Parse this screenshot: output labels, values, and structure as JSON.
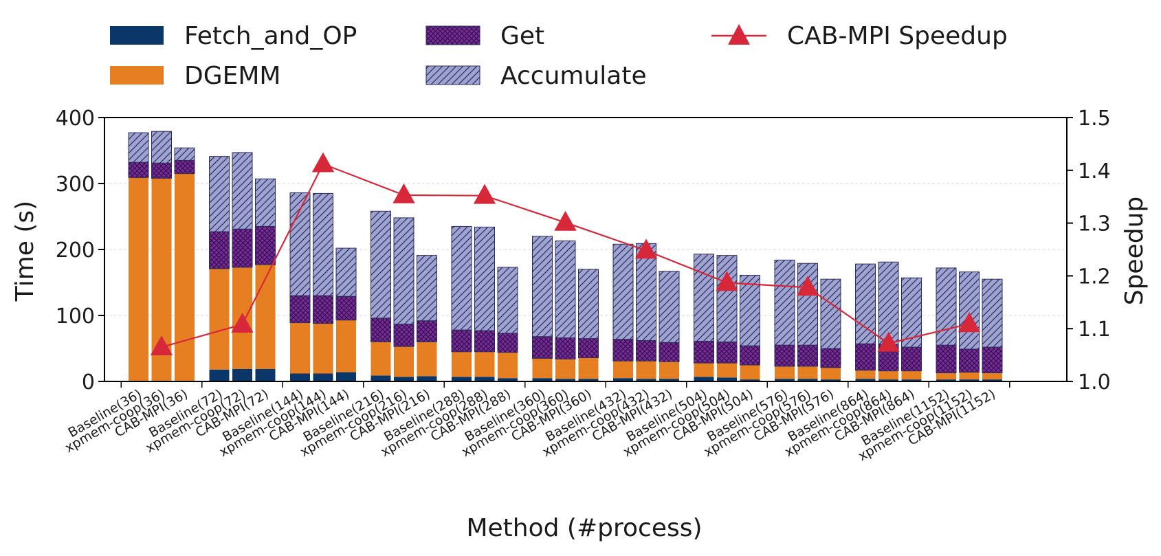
{
  "chart_data": {
    "type": "bar",
    "xlabel": "Method (#process)",
    "ylabel": "Time (s)",
    "y2label": "Speedup",
    "ylim": [
      0,
      400
    ],
    "y2lim": [
      1.0,
      1.5
    ],
    "yticks": [
      "0",
      "100",
      "200",
      "300",
      "400"
    ],
    "y2ticks": [
      "1.0",
      "1.1",
      "1.2",
      "1.3",
      "1.4",
      "1.5"
    ],
    "grid": "horizontal dashed",
    "legend_position": "top",
    "stacked": true,
    "categories": [
      "Baseline(36)",
      "xpmem-coop(36)",
      "CAB-MPI(36)",
      "Baseline(72)",
      "xpmem-coop(72)",
      "CAB-MPI(72)",
      "Baseline(144)",
      "xpmem-coop(144)",
      "CAB-MPI(144)",
      "Baseline(216)",
      "xpmem-coop(216)",
      "CAB-MPI(216)",
      "Baseline(288)",
      "xpmem-coop(288)",
      "CAB-MPI(288)",
      "Baseline(360)",
      "xpmem-coop(360)",
      "CAB-MPI(360)",
      "Baseline(432)",
      "xpmem-coop(432)",
      "CAB-MPI(432)",
      "Baseline(504)",
      "xpmem-coop(504)",
      "CAB-MPI(504)",
      "Baseline(576)",
      "xpmem-coop(576)",
      "CAB-MPI(576)",
      "Baseline(864)",
      "xpmem-coop(864)",
      "CAB-MPI(864)",
      "Baseline(1152)",
      "xpmem-coop(1152)",
      "CAB-MPI(1152)"
    ],
    "series": [
      {
        "name": "Fetch_and_OP",
        "color": "#0b3668",
        "pattern": "solid",
        "values": [
          0,
          0,
          0,
          18,
          19,
          19,
          12,
          12,
          14,
          9,
          7,
          8,
          7,
          7,
          5,
          5,
          4,
          4,
          5,
          4,
          4,
          7,
          6,
          3,
          4,
          4,
          3,
          4,
          3,
          3,
          3,
          3,
          3
        ]
      },
      {
        "name": "DGEMM",
        "color": "#e67e22",
        "pattern": "solid",
        "values": [
          309,
          308,
          315,
          153,
          154,
          158,
          77,
          76,
          79,
          51,
          46,
          52,
          38,
          38,
          39,
          30,
          30,
          32,
          26,
          27,
          26,
          21,
          22,
          22,
          19,
          19,
          18,
          13,
          13,
          13,
          10,
          11,
          10
        ]
      },
      {
        "name": "Get",
        "color": "#7b2a9e",
        "pattern": "crosshatch",
        "values": [
          23,
          23,
          20,
          56,
          58,
          58,
          41,
          42,
          36,
          36,
          34,
          32,
          33,
          32,
          29,
          33,
          32,
          29,
          33,
          31,
          29,
          33,
          32,
          29,
          32,
          32,
          29,
          40,
          40,
          36,
          42,
          35,
          39
        ]
      },
      {
        "name": "Accumulate",
        "color": "#9fa3d1",
        "pattern": "diagonal",
        "values": [
          45,
          48,
          19,
          114,
          116,
          72,
          156,
          155,
          73,
          162,
          161,
          99,
          157,
          157,
          100,
          152,
          147,
          105,
          144,
          147,
          108,
          132,
          131,
          107,
          129,
          124,
          105,
          121,
          125,
          105,
          117,
          117,
          103
        ]
      }
    ],
    "line_series": {
      "name": "CAB-MPI Speedup",
      "color": "#d62838",
      "axis": "right",
      "x_categories": [
        "xpmem-coop(36)",
        "xpmem-coop(72)",
        "xpmem-coop(144)",
        "xpmem-coop(216)",
        "xpmem-coop(288)",
        "xpmem-coop(360)",
        "xpmem-coop(432)",
        "xpmem-coop(504)",
        "xpmem-coop(576)",
        "xpmem-coop(864)",
        "xpmem-coop(1152)"
      ],
      "values": [
        1.065,
        1.108,
        1.412,
        1.353,
        1.352,
        1.301,
        1.248,
        1.187,
        1.178,
        1.072,
        1.109
      ]
    }
  }
}
